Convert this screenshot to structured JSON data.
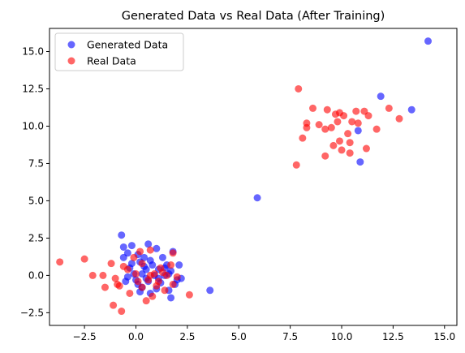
{
  "chart_data": {
    "type": "scatter",
    "title": "Generated Data vs Real Data (After Training)",
    "xlabel": "",
    "ylabel": "",
    "xlim": [
      -4.2,
      15.6
    ],
    "ylim": [
      -3.35,
      16.55
    ],
    "x_ticks": [
      -2.5,
      0.0,
      2.5,
      5.0,
      7.5,
      10.0,
      12.5,
      15.0
    ],
    "x_tick_labels": [
      "−2.5",
      "0.0",
      "2.5",
      "5.0",
      "7.5",
      "10.0",
      "12.5",
      "15.0"
    ],
    "y_ticks": [
      -2.5,
      0.0,
      2.5,
      5.0,
      7.5,
      10.0,
      12.5,
      15.0
    ],
    "y_tick_labels": [
      "−2.5",
      "0.0",
      "2.5",
      "5.0",
      "7.5",
      "10.0",
      "12.5",
      "15.0"
    ],
    "grid": false,
    "legend_position": "top-left",
    "series": [
      {
        "name": "Generated Data",
        "color": "#0000ff",
        "alpha": 0.6,
        "points": [
          [
            14.2,
            15.7
          ],
          [
            11.9,
            12.0
          ],
          [
            13.4,
            11.1
          ],
          [
            10.8,
            9.7
          ],
          [
            10.9,
            7.6
          ],
          [
            5.9,
            5.2
          ],
          [
            3.6,
            -1.0
          ],
          [
            -0.7,
            2.7
          ],
          [
            -0.2,
            2.0
          ],
          [
            0.6,
            2.1
          ],
          [
            1.0,
            1.8
          ],
          [
            1.8,
            1.6
          ],
          [
            -0.4,
            1.5
          ],
          [
            0.1,
            1.4
          ],
          [
            -0.6,
            1.2
          ],
          [
            0.4,
            1.2
          ],
          [
            1.3,
            1.2
          ],
          [
            2.1,
            0.7
          ],
          [
            0.2,
            0.9
          ],
          [
            0.8,
            0.7
          ],
          [
            1.5,
            0.7
          ],
          [
            -0.3,
            0.5
          ],
          [
            0.5,
            0.4
          ],
          [
            1.1,
            0.4
          ],
          [
            1.7,
            0.3
          ],
          [
            -0.1,
            0.1
          ],
          [
            0.3,
            0.1
          ],
          [
            0.9,
            0.0
          ],
          [
            1.4,
            0.0
          ],
          [
            2.2,
            -0.2
          ],
          [
            0.0,
            -0.3
          ],
          [
            0.6,
            -0.4
          ],
          [
            1.2,
            -0.5
          ],
          [
            1.9,
            -0.6
          ],
          [
            0.3,
            -0.8
          ],
          [
            1.0,
            -0.9
          ],
          [
            1.6,
            -1.0
          ],
          [
            0.7,
            -1.2
          ],
          [
            1.7,
            -1.5
          ],
          [
            -0.5,
            -0.4
          ],
          [
            0.1,
            -0.6
          ],
          [
            1.1,
            -0.2
          ],
          [
            0.4,
            0.6
          ],
          [
            -0.2,
            0.8
          ],
          [
            0.7,
            1.0
          ],
          [
            1.4,
            0.5
          ],
          [
            -0.6,
            1.9
          ],
          [
            0.2,
            -1.1
          ],
          [
            2.0,
            -0.3
          ],
          [
            0.5,
            -0.2
          ],
          [
            1.6,
            0.1
          ],
          [
            -0.4,
            -0.1
          ]
        ]
      },
      {
        "name": "Real Data",
        "color": "#ff0000",
        "alpha": 0.6,
        "points": [
          [
            7.9,
            12.5
          ],
          [
            8.6,
            11.2
          ],
          [
            9.3,
            11.1
          ],
          [
            9.9,
            10.9
          ],
          [
            10.1,
            10.7
          ],
          [
            10.7,
            11.0
          ],
          [
            11.1,
            11.0
          ],
          [
            12.3,
            11.2
          ],
          [
            12.8,
            10.5
          ],
          [
            11.3,
            10.7
          ],
          [
            10.5,
            10.3
          ],
          [
            9.8,
            10.3
          ],
          [
            8.9,
            10.1
          ],
          [
            8.3,
            10.2
          ],
          [
            8.3,
            9.9
          ],
          [
            9.2,
            9.8
          ],
          [
            10.3,
            9.5
          ],
          [
            11.7,
            9.8
          ],
          [
            8.1,
            9.2
          ],
          [
            9.9,
            9.0
          ],
          [
            10.4,
            8.9
          ],
          [
            9.6,
            8.7
          ],
          [
            10.0,
            8.4
          ],
          [
            11.2,
            8.5
          ],
          [
            10.4,
            8.2
          ],
          [
            9.2,
            8.0
          ],
          [
            7.8,
            7.4
          ],
          [
            9.5,
            9.9
          ],
          [
            10.8,
            10.2
          ],
          [
            9.7,
            10.8
          ],
          [
            -3.7,
            0.9
          ],
          [
            -2.5,
            1.1
          ],
          [
            -2.1,
            0.0
          ],
          [
            -1.6,
            0.0
          ],
          [
            -1.5,
            -0.8
          ],
          [
            -1.2,
            0.8
          ],
          [
            -1.0,
            -0.2
          ],
          [
            -0.9,
            -0.6
          ],
          [
            -0.8,
            -0.7
          ],
          [
            -0.7,
            -2.4
          ],
          [
            -1.1,
            -2.0
          ],
          [
            -0.3,
            -1.2
          ],
          [
            0.5,
            -1.7
          ],
          [
            0.8,
            -1.4
          ],
          [
            0.3,
            -0.8
          ],
          [
            0.7,
            0.0
          ],
          [
            1.1,
            -0.4
          ],
          [
            1.4,
            -1.0
          ],
          [
            1.8,
            -0.6
          ],
          [
            2.6,
            -1.3
          ],
          [
            1.8,
            1.5
          ],
          [
            0.7,
            1.7
          ],
          [
            0.2,
            1.6
          ],
          [
            -0.1,
            1.2
          ],
          [
            -0.4,
            0.4
          ],
          [
            0.0,
            0.1
          ],
          [
            0.9,
            0.1
          ],
          [
            1.5,
            0.0
          ],
          [
            2.0,
            -0.1
          ],
          [
            1.7,
            0.7
          ],
          [
            0.3,
            0.8
          ],
          [
            1.2,
            0.5
          ],
          [
            0.6,
            -0.3
          ],
          [
            1.3,
            0.2
          ],
          [
            -0.6,
            0.6
          ],
          [
            0.1,
            -0.4
          ],
          [
            1.0,
            -0.7
          ]
        ]
      }
    ]
  }
}
